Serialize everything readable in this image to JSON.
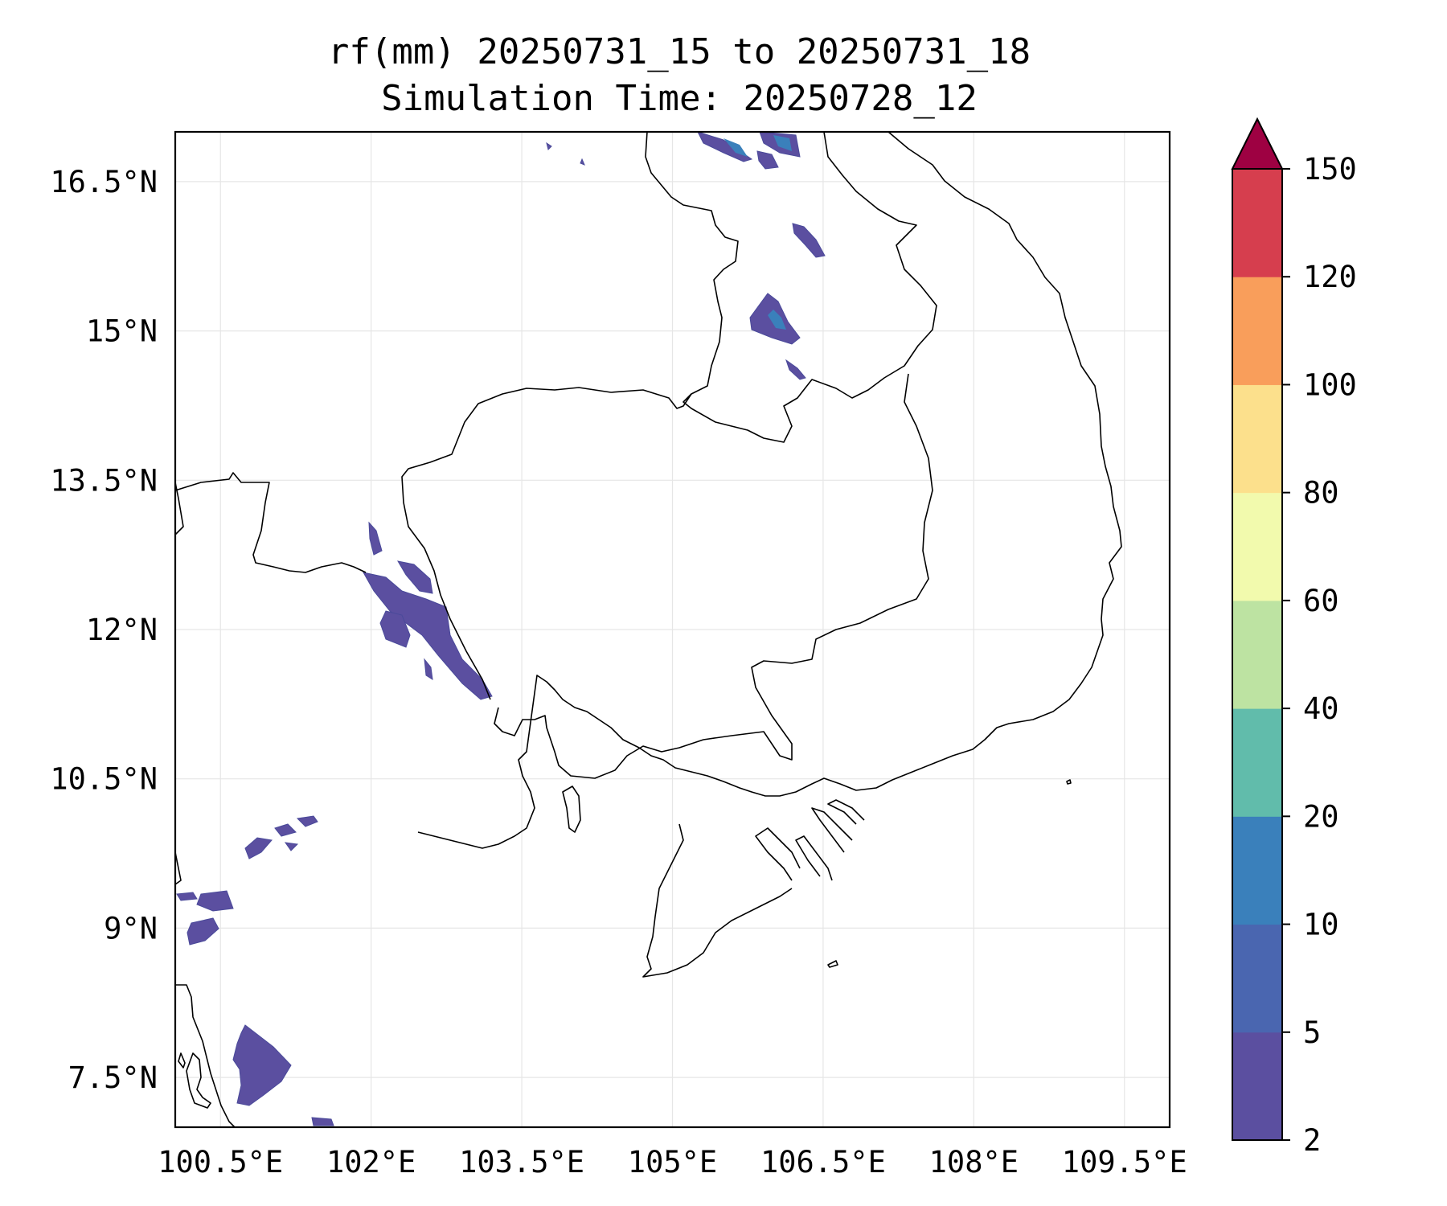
{
  "title": {
    "line1": "rf(mm) 20250731_15 to 20250731_18",
    "line2": "Simulation Time: 20250728_12"
  },
  "map": {
    "lon_ticks": [
      100.5,
      102,
      103.5,
      105,
      106.5,
      108,
      109.5
    ],
    "lat_ticks": [
      7.5,
      9,
      10.5,
      12,
      13.5,
      15,
      16.5
    ],
    "lon_labels": [
      "100.5°E",
      "102°E",
      "103.5°E",
      "105°E",
      "106.5°E",
      "108°E",
      "109.5°E"
    ],
    "lat_labels": [
      "7.5°N",
      "9°N",
      "10.5°N",
      "12°N",
      "13.5°N",
      "15°N",
      "16.5°N"
    ],
    "lon_range": [
      100.05,
      109.95
    ],
    "lat_range": [
      7.0,
      17.0
    ],
    "grid": true,
    "coastline_color": "#000000"
  },
  "colorbar": {
    "levels": [
      2,
      5,
      10,
      20,
      40,
      60,
      80,
      100,
      120,
      150
    ],
    "labels": [
      "2",
      "5",
      "10",
      "20",
      "40",
      "60",
      "80",
      "100",
      "120",
      "150"
    ],
    "colors": [
      "#5b4fa0",
      "#4a66b0",
      "#3a80bb",
      "#61bcab",
      "#bde3a2",
      "#f2faad",
      "#fce08c",
      "#f99e5b",
      "#d63e4e"
    ],
    "extend_color": "#9e0142",
    "extend": "max"
  }
}
